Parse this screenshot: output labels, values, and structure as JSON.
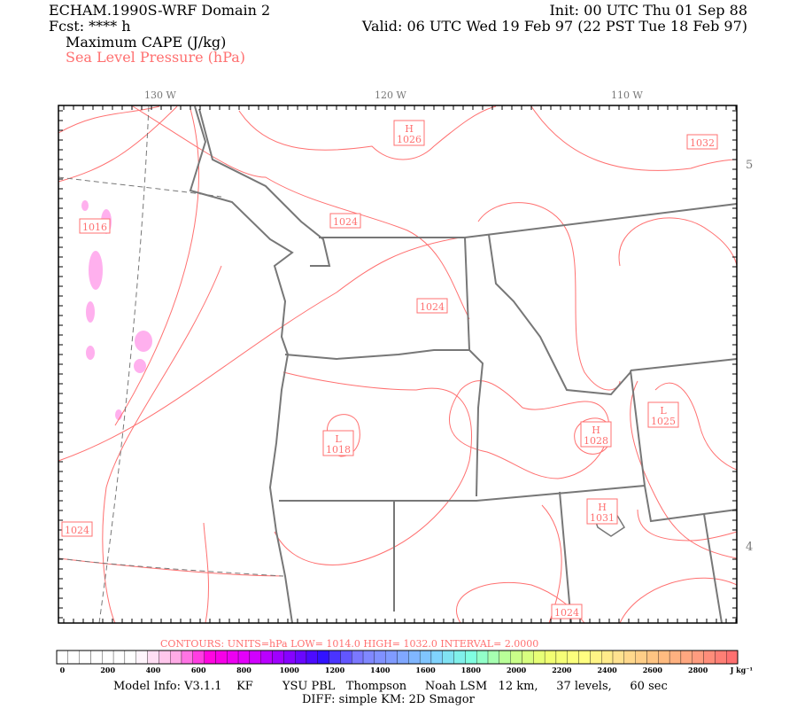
{
  "header": {
    "model_title": "ECHAM.1990S-WRF Domain 2",
    "forecast": "Fcst: **** h",
    "init": "Init: 00 UTC Thu 01 Sep 88",
    "valid": "Valid: 06 UTC Wed 19 Feb 97 (22 PST Tue 18 Feb 97)",
    "field_1": "Maximum CAPE (J/kg)",
    "field_2": "Sea Level Pressure (hPa)"
  },
  "map": {
    "lon_labels": [
      "130 W",
      "120 W",
      "110 W"
    ],
    "lat_labels": [
      "5",
      "4"
    ],
    "pressure_labels": [
      "H\n1026",
      "1032",
      "1024",
      "1016",
      "1024",
      "L\n1018",
      "H\n1028",
      "L\n1025",
      "H\n1031",
      "1024",
      "1024"
    ],
    "contour_color": "#ff7070",
    "border_color": "#777777",
    "cape_color": "#ffb0ee"
  },
  "contours_info": {
    "text": "CONTOURS:  UNITS=hPa  LOW=  1014.0      HIGH=  1032.0      INTERVAL=   2.0000"
  },
  "colorbar": {
    "tick_labels": [
      "0",
      "200",
      "400",
      "600",
      "800",
      "1000",
      "1200",
      "1400",
      "1600",
      "1800",
      "2000",
      "2200",
      "2400",
      "2600",
      "2800"
    ],
    "units": "J kg⁻¹",
    "min": 0,
    "max": 3000,
    "step": 50,
    "color_stops": [
      "#ffffff",
      "#ffffff",
      "#ffffff",
      "#ffb4e6",
      "#ff00e0",
      "#e000ff",
      "#9000ff",
      "#3010ff",
      "#8080ff",
      "#80a0ff",
      "#80d0ff",
      "#80ffe0",
      "#c0ff90",
      "#f0ff70",
      "#ffff80",
      "#ffe090",
      "#ffc080",
      "#ffa080",
      "#ff7070"
    ]
  },
  "footer": {
    "model_info": "Model Info: V3.1.1    KF        YSU PBL   Thompson     Noah LSM   12 km,     37 levels,     60 sec",
    "diff": "DIFF: simple KM: 2D Smagor"
  }
}
